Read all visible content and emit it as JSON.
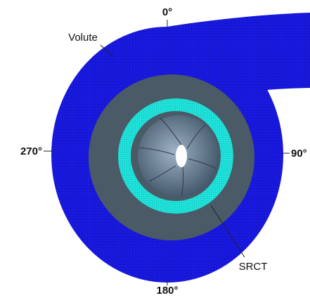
{
  "labels": [
    "0°",
    "Volute",
    "270°",
    "90°",
    "180°",
    "SRCT"
  ]
}
